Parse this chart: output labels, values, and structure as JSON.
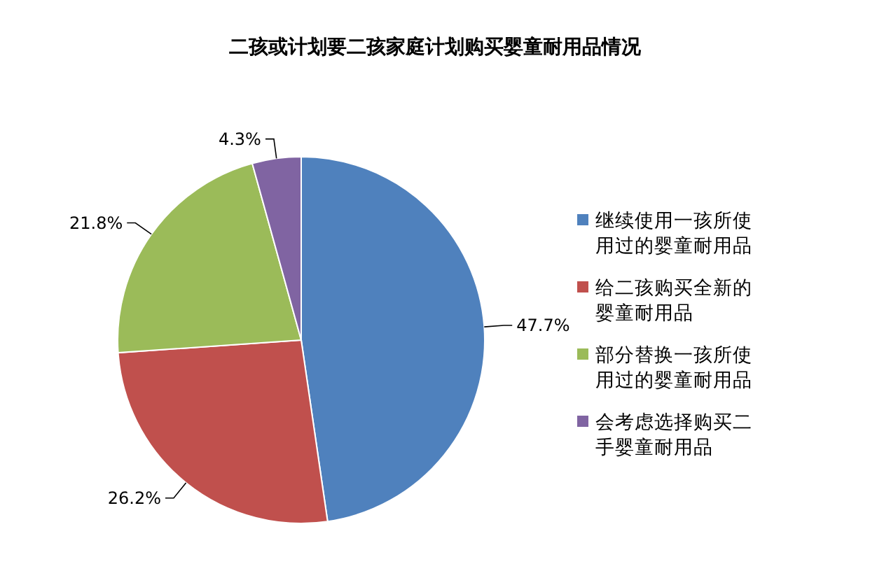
{
  "chart_data": {
    "type": "pie",
    "title": "二孩或计划要二孩家庭计划购买婴童耐用品情况",
    "categories": [
      "继续使用一孩所使用过的婴童耐用品",
      "给二孩购买全新的婴童耐用品",
      "部分替换一孩所使用过的婴童耐用品",
      "会考虑选择购买二手婴童耐用品"
    ],
    "values": [
      47.7,
      26.2,
      21.8,
      4.3
    ],
    "value_labels": [
      "47.7%",
      "26.2%",
      "21.8%",
      "4.3%"
    ],
    "colors": [
      "#4f81bd",
      "#c0504d",
      "#9bbb59",
      "#8064a2"
    ],
    "legend": "right"
  }
}
